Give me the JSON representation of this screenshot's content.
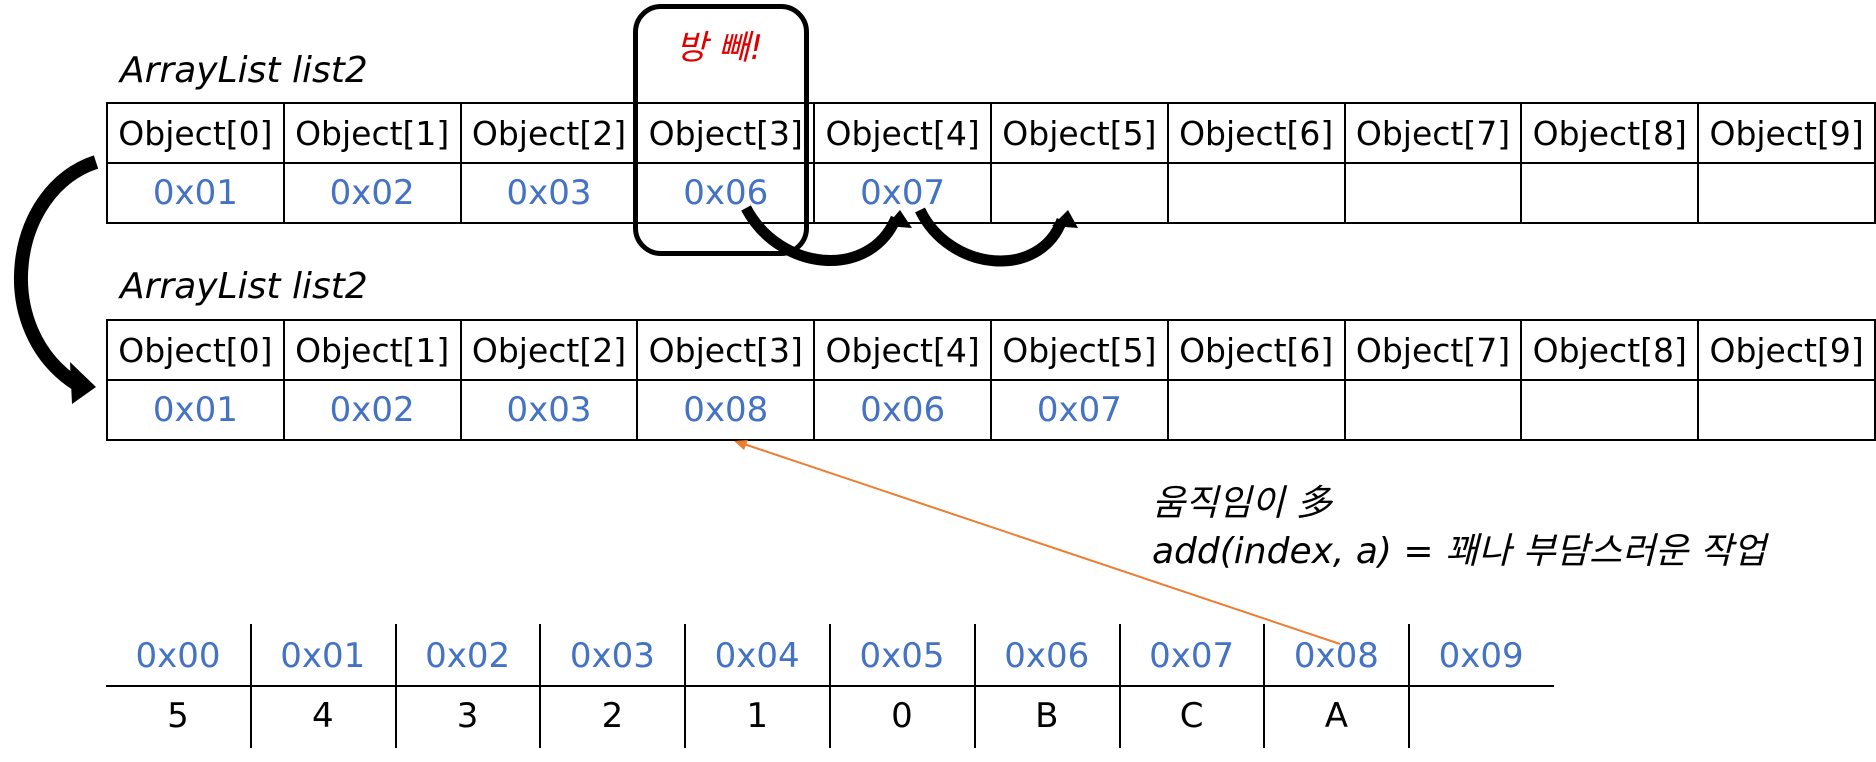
{
  "top_label": "ArrayList list2",
  "bottom_label": "ArrayList list2",
  "highlight_note": "방 빼!",
  "top_array": {
    "headers": [
      "Object[0]",
      "Object[1]",
      "Object[2]",
      "Object[3]",
      "Object[4]",
      "Object[5]",
      "Object[6]",
      "Object[7]",
      "Object[8]",
      "Object[9]"
    ],
    "values": [
      "0x01",
      "0x02",
      "0x03",
      "0x06",
      "0x07",
      "",
      "",
      "",
      "",
      ""
    ]
  },
  "bottom_array": {
    "headers": [
      "Object[0]",
      "Object[1]",
      "Object[2]",
      "Object[3]",
      "Object[4]",
      "Object[5]",
      "Object[6]",
      "Object[7]",
      "Object[8]",
      "Object[9]"
    ],
    "values": [
      "0x01",
      "0x02",
      "0x03",
      "0x08",
      "0x06",
      "0x07",
      "",
      "",
      "",
      ""
    ]
  },
  "note": {
    "line1": "움직임이 多",
    "line2": "add(index, a) = 꽤나 부담스러운 작업"
  },
  "memory": {
    "addresses": [
      "0x00",
      "0x01",
      "0x02",
      "0x03",
      "0x04",
      "0x05",
      "0x06",
      "0x07",
      "0x08",
      "0x09"
    ],
    "values": [
      "5",
      "4",
      "3",
      "2",
      "1",
      "0",
      "B",
      "C",
      "A",
      ""
    ]
  },
  "colors": {
    "address_blue": "#4472c4",
    "note_red": "#e00000",
    "pointer_orange": "#ed7d31"
  }
}
